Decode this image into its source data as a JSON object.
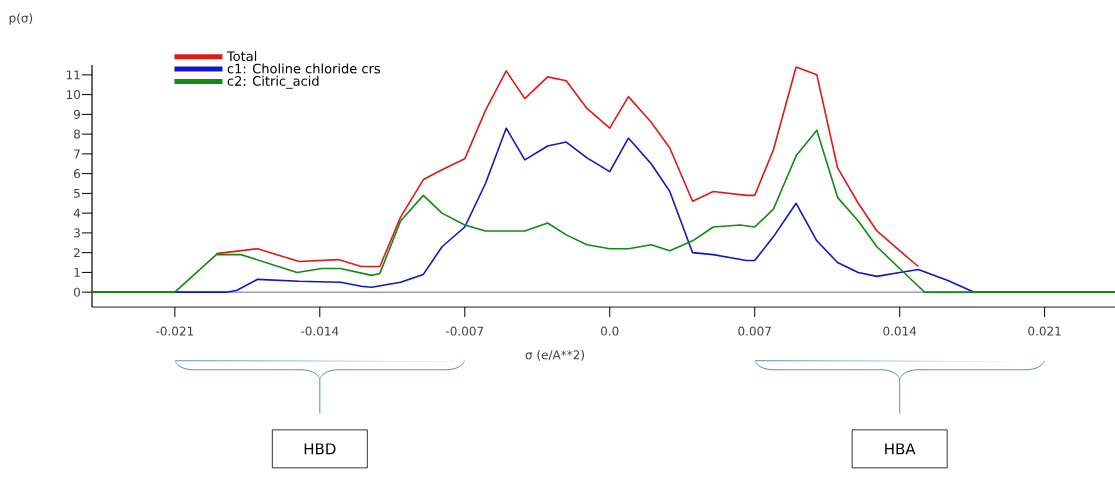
{
  "chart_data": {
    "type": "line",
    "xlabel": "σ (e/A**2)",
    "ylabel": "p(σ)",
    "xlim": [
      -0.025,
      0.0244
    ],
    "ylim": [
      -0.75,
      11.5
    ],
    "xticks": [
      -0.021,
      -0.014,
      -0.007,
      {
        "value": 0,
        "label": "0.0"
      },
      0.007,
      0.014,
      0.021
    ],
    "yticks": [
      0,
      1,
      2,
      3,
      4,
      5,
      6,
      7,
      8,
      9,
      10,
      11
    ],
    "legend": "top left",
    "ref_lines": [
      {
        "axis": "y",
        "value": 0,
        "color": "#a0a0a0"
      }
    ],
    "annotations": [
      "HBD",
      "HBA"
    ],
    "series": [
      {
        "name": "Total",
        "color": "#e01a1a",
        "x": [
          -0.019,
          -0.017,
          -0.015,
          -0.0131,
          -0.012,
          -0.0111,
          -0.0101,
          -0.009,
          -0.0081,
          -0.007,
          -0.006,
          -0.005,
          -0.0041,
          -0.003,
          -0.0021,
          -0.0011,
          0.0,
          0.0009,
          0.002,
          0.0029,
          0.004,
          0.005,
          0.0066,
          0.007,
          0.0079,
          0.009,
          0.01,
          0.011,
          0.012,
          0.0129,
          0.014,
          0.0149
        ],
        "values": [
          1.95,
          2.2,
          1.55,
          1.65,
          1.3,
          1.3,
          3.8,
          5.7,
          6.2,
          6.75,
          9.2,
          11.2,
          9.8,
          10.9,
          10.7,
          9.3,
          8.3,
          9.9,
          8.6,
          7.3,
          4.6,
          5.1,
          4.9,
          4.9,
          7.2,
          11.4,
          11.0,
          6.3,
          4.5,
          3.1,
          2.1,
          1.3
        ]
      },
      {
        "name": "c1: Choline chloride crs",
        "color": "#1414c8",
        "x": [
          -0.025,
          -0.0185,
          -0.018,
          -0.017,
          -0.015,
          -0.013,
          -0.012,
          -0.0115,
          -0.0101,
          -0.009,
          -0.0081,
          -0.007,
          -0.006,
          -0.005,
          -0.0041,
          -0.003,
          -0.0021,
          -0.0011,
          0.0,
          0.0009,
          0.002,
          0.0029,
          0.004,
          0.005,
          0.0066,
          0.007,
          0.0079,
          0.009,
          0.01,
          0.011,
          0.012,
          0.0129,
          0.014,
          0.0149,
          0.0163,
          0.0176,
          0.0244
        ],
        "values": [
          0,
          0,
          0.1,
          0.65,
          0.55,
          0.5,
          0.3,
          0.25,
          0.5,
          0.9,
          2.3,
          3.3,
          5.5,
          8.3,
          6.7,
          7.4,
          7.6,
          6.8,
          6.1,
          7.8,
          6.5,
          5.1,
          2.0,
          1.9,
          1.6,
          1.6,
          2.8,
          4.5,
          2.6,
          1.5,
          1.0,
          0.8,
          1.0,
          1.15,
          0.6,
          0,
          0
        ]
      },
      {
        "name": "c2: Citric_acid",
        "color": "#138a13",
        "x": [
          -0.025,
          -0.021,
          -0.019,
          -0.0178,
          -0.0151,
          -0.0139,
          -0.013,
          -0.0115,
          -0.0111,
          -0.0101,
          -0.009,
          -0.0081,
          -0.007,
          -0.006,
          -0.005,
          -0.0041,
          -0.003,
          -0.0021,
          -0.0011,
          0.0,
          0.0009,
          0.002,
          0.0029,
          0.004,
          0.005,
          0.0063,
          0.007,
          0.0079,
          0.009,
          0.01,
          0.011,
          0.012,
          0.0129,
          0.014,
          0.0149,
          0.0152,
          0.0244
        ],
        "values": [
          0,
          0,
          1.9,
          1.9,
          1.0,
          1.2,
          1.2,
          0.85,
          0.95,
          3.6,
          4.9,
          4.0,
          3.4,
          3.1,
          3.1,
          3.1,
          3.5,
          2.9,
          2.4,
          2.2,
          2.2,
          2.4,
          2.1,
          2.6,
          3.3,
          3.4,
          3.3,
          4.2,
          6.9,
          8.2,
          4.8,
          3.6,
          2.3,
          1.2,
          0.3,
          0,
          0
        ]
      }
    ]
  }
}
